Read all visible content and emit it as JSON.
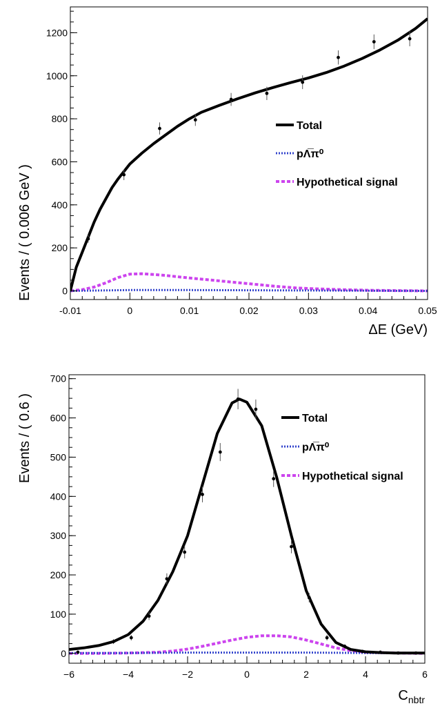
{
  "chart_data": [
    {
      "type": "scatter",
      "ylabel": "Events / ( 0.006 GeV )",
      "xlabel": "ΔE (GeV)",
      "xlim": [
        -0.01,
        0.05
      ],
      "ylim": [
        -40,
        1320
      ],
      "x_ticks": [
        "-0.01",
        "0",
        "0.01",
        "0.02",
        "0.03",
        "0.04",
        "0.05"
      ],
      "y_ticks": [
        "0",
        "200",
        "400",
        "600",
        "800",
        "1000",
        "1200"
      ],
      "grid": false,
      "legend_position": "right",
      "legend": [
        {
          "label": "Total",
          "style": "solid",
          "color": "#000000"
        },
        {
          "label": "pΛ̅π⁰",
          "style": "dotted",
          "color": "#3344cc"
        },
        {
          "label": "Hypothetical signal",
          "style": "dashed",
          "color": "#cc44ee"
        }
      ],
      "points": {
        "x": [
          -0.007,
          -0.001,
          0.005,
          0.011,
          0.017,
          0.023,
          0.029,
          0.035,
          0.041,
          0.047
        ],
        "y": [
          242,
          540,
          755,
          795,
          890,
          918,
          970,
          1085,
          1158,
          1172
        ],
        "err": [
          18,
          25,
          28,
          28,
          30,
          31,
          32,
          33,
          34,
          35
        ]
      },
      "series": [
        {
          "name": "Total",
          "style": "solid",
          "color": "#000000",
          "x": [
            -0.01,
            -0.009,
            -0.008,
            -0.007,
            -0.006,
            -0.005,
            -0.004,
            -0.003,
            -0.002,
            -0.001,
            0,
            0.002,
            0.004,
            0.006,
            0.008,
            0.01,
            0.012,
            0.015,
            0.018,
            0.021,
            0.024,
            0.027,
            0.03,
            0.033,
            0.036,
            0.039,
            0.042,
            0.045,
            0.048,
            0.05
          ],
          "y": [
            0,
            110,
            180,
            250,
            320,
            380,
            430,
            480,
            520,
            555,
            590,
            640,
            685,
            725,
            765,
            800,
            830,
            862,
            892,
            920,
            945,
            968,
            990,
            1015,
            1045,
            1080,
            1120,
            1165,
            1220,
            1265
          ]
        },
        {
          "name": "pΛ̅π⁰",
          "style": "dotted",
          "color": "#3344cc",
          "x": [
            -0.01,
            0,
            0.01,
            0.02,
            0.03,
            0.04,
            0.05
          ],
          "y": [
            0,
            4,
            4,
            3,
            2,
            1,
            0
          ]
        },
        {
          "name": "Hypothetical signal",
          "style": "dashed",
          "color": "#cc44ee",
          "x": [
            -0.01,
            -0.008,
            -0.006,
            -0.004,
            -0.002,
            0,
            0.002,
            0.004,
            0.006,
            0.008,
            0.01,
            0.013,
            0.016,
            0.019,
            0.022,
            0.025,
            0.028,
            0.031,
            0.034,
            0.037,
            0.04,
            0.043,
            0.046,
            0.05
          ],
          "y": [
            0,
            6,
            18,
            38,
            62,
            78,
            80,
            76,
            72,
            66,
            60,
            52,
            44,
            36,
            28,
            20,
            14,
            10,
            7,
            5,
            3,
            2,
            1,
            0
          ]
        }
      ]
    },
    {
      "type": "scatter",
      "ylabel": "Events / ( 0.6 )",
      "xlabel": "C",
      "xlabel_sub": "nbtr",
      "xlim": [
        -6,
        6
      ],
      "ylim": [
        -25,
        710
      ],
      "x_ticks": [
        "−6",
        "−4",
        "−2",
        "0",
        "2",
        "4",
        "6"
      ],
      "y_ticks": [
        "0",
        "100",
        "200",
        "300",
        "400",
        "500",
        "600",
        "700"
      ],
      "grid": false,
      "legend_position": "right",
      "legend": [
        {
          "label": "Total",
          "style": "solid",
          "color": "#000000"
        },
        {
          "label": "pΛ̅π⁰",
          "style": "dotted",
          "color": "#3344cc"
        },
        {
          "label": "Hypothetical signal",
          "style": "dashed",
          "color": "#cc44ee"
        }
      ],
      "points": {
        "x": [
          -5.7,
          -4.5,
          -3.9,
          -3.3,
          -2.7,
          -2.1,
          -1.5,
          -0.9,
          -0.3,
          0.3,
          0.9,
          1.5,
          2.1,
          2.7,
          3.3,
          3.9,
          4.5,
          5.1,
          5.7
        ],
        "y": [
          3,
          30,
          40,
          95,
          190,
          258,
          405,
          513,
          648,
          622,
          445,
          272,
          142,
          40,
          18,
          5,
          3,
          1,
          1
        ],
        "err": [
          2,
          6,
          7,
          10,
          14,
          16,
          20,
          23,
          26,
          25,
          21,
          17,
          12,
          7,
          5,
          3,
          2,
          1,
          1
        ]
      },
      "series": [
        {
          "name": "Total",
          "style": "solid",
          "color": "#000000",
          "x": [
            -6,
            -5.5,
            -5,
            -4.5,
            -4,
            -3.5,
            -3,
            -2.5,
            -2,
            -1.5,
            -1,
            -0.5,
            -0.25,
            0,
            0.5,
            1,
            1.5,
            2,
            2.5,
            3,
            3.5,
            4,
            4.5,
            5,
            5.5,
            6
          ],
          "y": [
            10,
            14,
            20,
            30,
            48,
            82,
            135,
            208,
            300,
            430,
            560,
            638,
            648,
            640,
            580,
            450,
            300,
            160,
            75,
            28,
            10,
            4,
            2,
            1,
            1,
            1
          ]
        },
        {
          "name": "pΛ̅π⁰",
          "style": "dotted",
          "color": "#3344cc",
          "x": [
            -6,
            -4,
            -2,
            0,
            2,
            4,
            6
          ],
          "y": [
            1,
            1,
            2,
            2,
            2,
            1,
            1
          ]
        },
        {
          "name": "Hypothetical signal",
          "style": "dashed",
          "color": "#cc44ee",
          "x": [
            -6,
            -5,
            -4,
            -3,
            -2.5,
            -2,
            -1.5,
            -1,
            -0.5,
            0,
            0.5,
            1,
            1.5,
            2,
            2.5,
            3,
            3.5,
            4,
            5,
            6
          ],
          "y": [
            0,
            0,
            1,
            3,
            6,
            11,
            18,
            26,
            34,
            41,
            45,
            45,
            42,
            34,
            24,
            14,
            7,
            3,
            1,
            0
          ]
        }
      ]
    }
  ]
}
